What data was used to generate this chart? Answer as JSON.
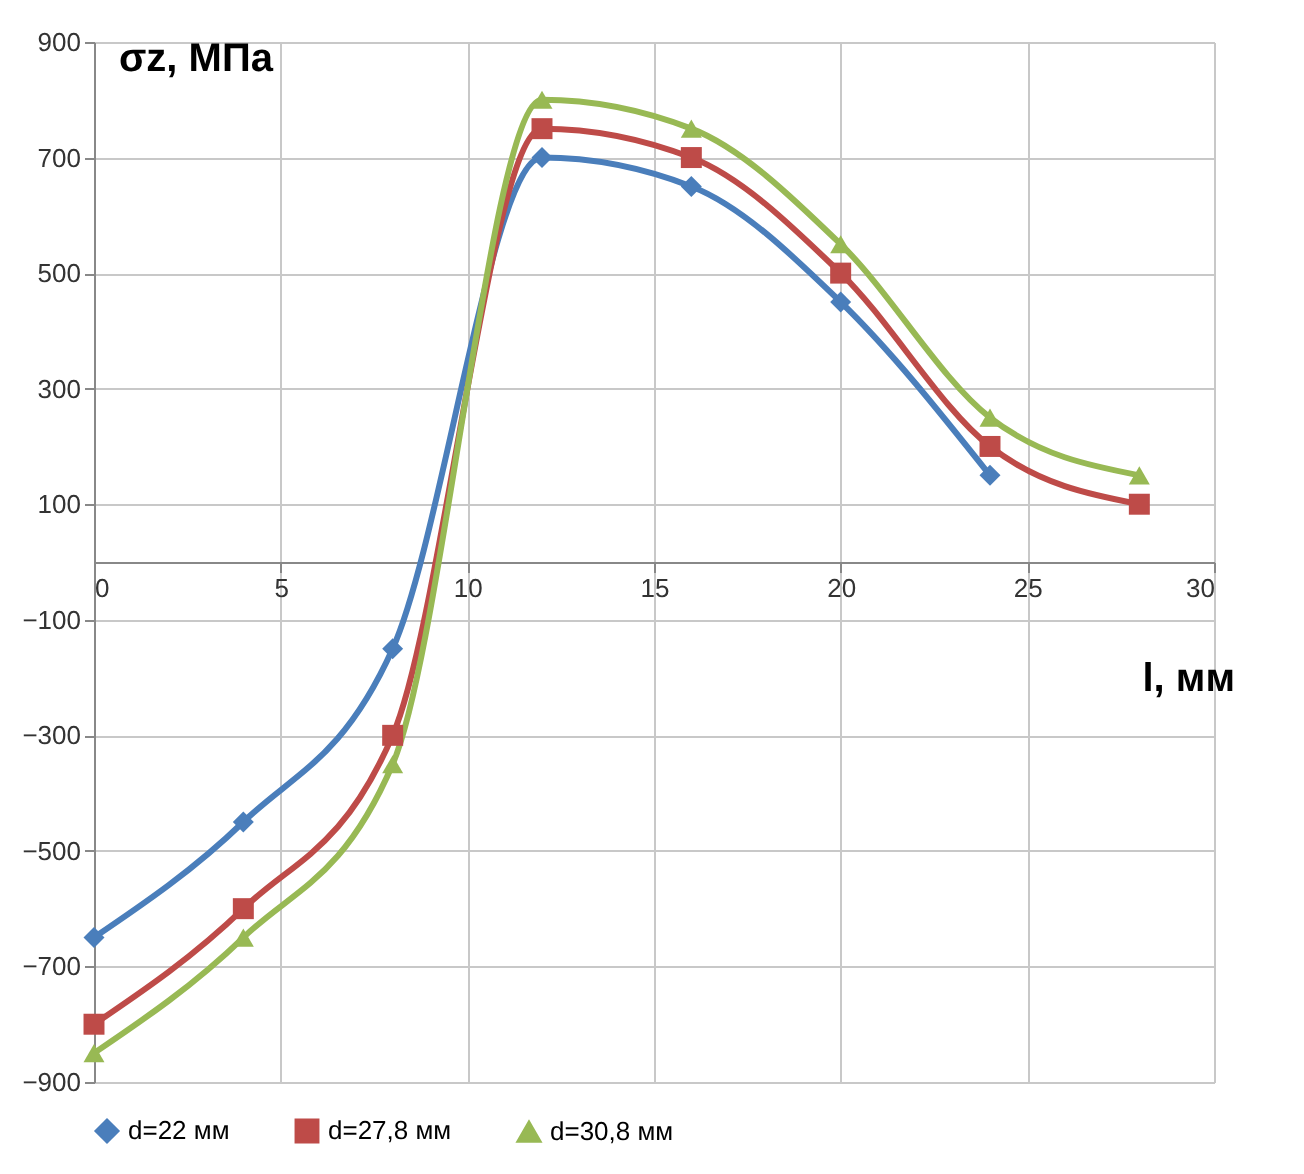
{
  "chart_data": {
    "type": "line",
    "xlabel": "l, мм",
    "ylabel": "σz, МПа",
    "x": [
      0,
      4,
      8,
      12,
      16,
      20,
      24,
      28
    ],
    "xlim": [
      0,
      30
    ],
    "xticks": [
      0,
      5,
      10,
      15,
      20,
      25,
      30
    ],
    "ylim": [
      -900,
      900
    ],
    "yticks": [
      -900,
      -700,
      -500,
      -300,
      -100,
      100,
      300,
      500,
      700,
      900
    ],
    "grid": true,
    "legend": "bottom",
    "line_style": "solid",
    "series": [
      {
        "name": "d=22 мм",
        "color": "#4a7ebb",
        "marker": "diamond",
        "values": [
          -650,
          -450,
          -150,
          700,
          650,
          450,
          150,
          null
        ]
      },
      {
        "name": "d=27,8 мм",
        "color": "#be4b48",
        "marker": "square",
        "values": [
          -800,
          -600,
          -300,
          750,
          700,
          500,
          200,
          100
        ]
      },
      {
        "name": "d=30,8 мм",
        "color": "#98b954",
        "marker": "triangle",
        "values": [
          -850,
          -650,
          -350,
          800,
          750,
          550,
          250,
          150
        ]
      }
    ]
  }
}
